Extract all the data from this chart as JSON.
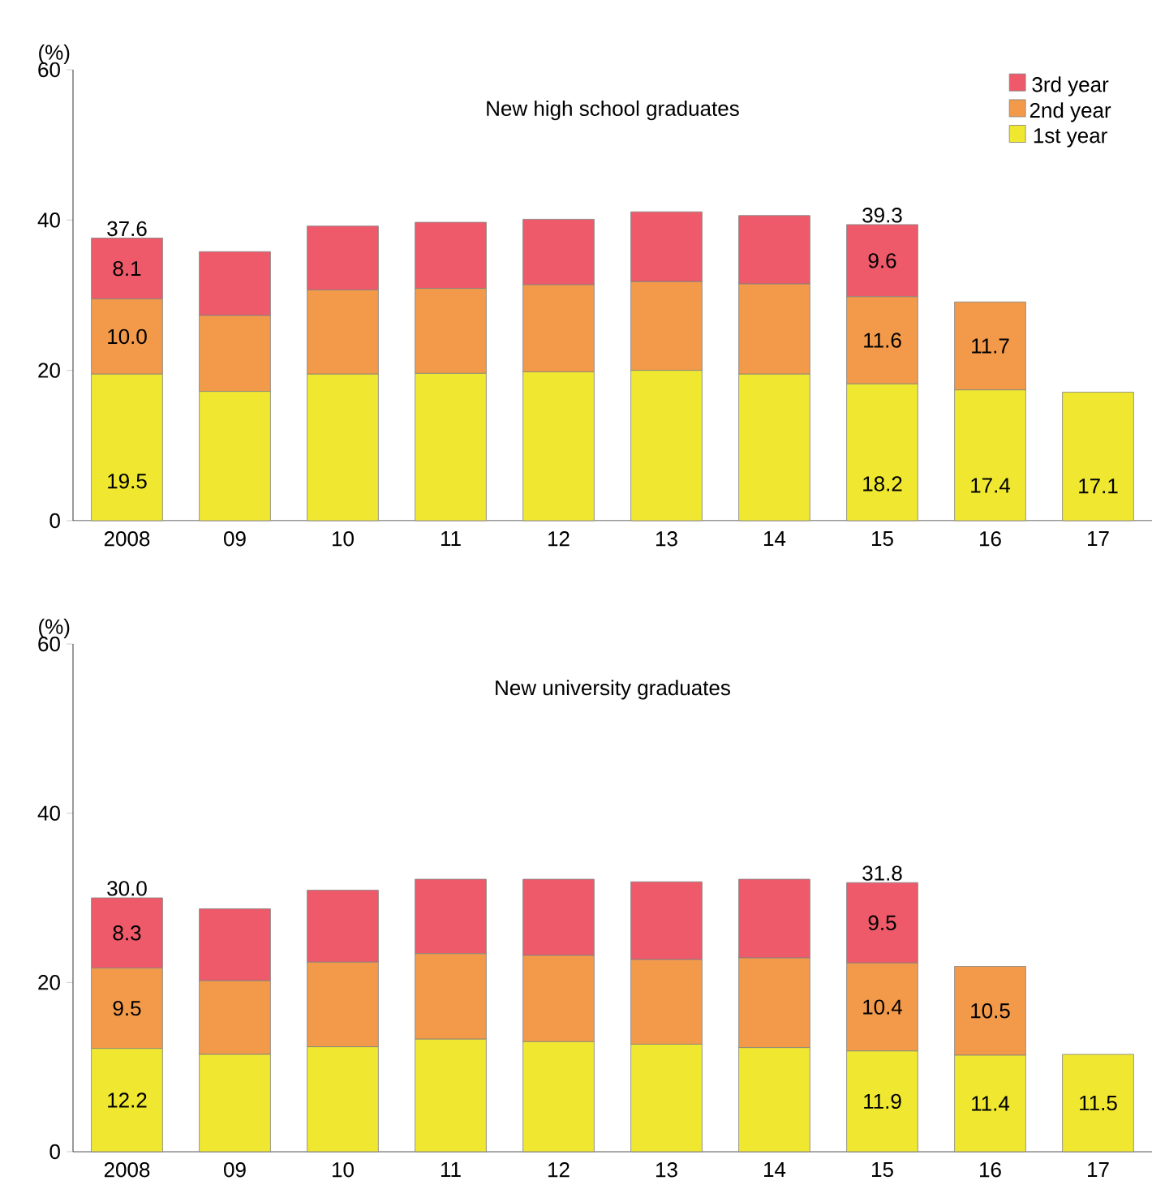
{
  "chart_data": [
    {
      "type": "bar",
      "stacked": true,
      "title": "New high school graduates",
      "ylabel": "(%)",
      "categories": [
        "2008",
        "09",
        "10",
        "11",
        "12",
        "13",
        "14",
        "15",
        "16",
        "17"
      ],
      "ylim": [
        0,
        60
      ],
      "yticks": [
        0,
        20,
        40,
        60
      ],
      "legend": "top right",
      "series": [
        {
          "name": "1st year",
          "color": "#f0e830",
          "values": [
            19.5,
            17.2,
            19.5,
            19.6,
            19.8,
            20.0,
            19.5,
            18.2,
            17.4,
            17.1
          ],
          "value_labels": [
            "19.5",
            null,
            null,
            null,
            null,
            null,
            null,
            "18.2",
            "17.4",
            "17.1"
          ]
        },
        {
          "name": "2nd year",
          "color": "#f39a4a",
          "values": [
            10.0,
            10.1,
            11.2,
            11.3,
            11.6,
            11.8,
            12.0,
            11.6,
            11.7,
            null
          ],
          "value_labels": [
            "10.0",
            null,
            null,
            null,
            null,
            null,
            null,
            "11.6",
            "11.7",
            null
          ]
        },
        {
          "name": "3rd year",
          "color": "#ee5a6a",
          "values": [
            8.1,
            8.5,
            8.5,
            8.8,
            8.7,
            9.3,
            9.1,
            9.6,
            null,
            null
          ],
          "value_labels": [
            "8.1",
            null,
            null,
            null,
            null,
            null,
            null,
            "9.6",
            null,
            null
          ]
        }
      ],
      "totals": [
        "37.6",
        null,
        null,
        null,
        null,
        null,
        null,
        "39.3",
        null,
        null
      ]
    },
    {
      "type": "bar",
      "stacked": true,
      "title": "New university graduates",
      "ylabel": "(%)",
      "categories": [
        "2008",
        "09",
        "10",
        "11",
        "12",
        "13",
        "14",
        "15",
        "16",
        "17"
      ],
      "ylim": [
        0,
        60
      ],
      "yticks": [
        0,
        20,
        40,
        60
      ],
      "series": [
        {
          "color": "#f0e830",
          "values": [
            12.2,
            11.5,
            12.4,
            13.3,
            13.0,
            12.7,
            12.3,
            11.9,
            11.4,
            11.5
          ],
          "value_labels": [
            "12.2",
            null,
            null,
            null,
            null,
            null,
            null,
            "11.9",
            "11.4",
            "11.5"
          ]
        },
        {
          "color": "#f39a4a",
          "values": [
            9.5,
            8.7,
            10.0,
            10.1,
            10.2,
            10.0,
            10.6,
            10.4,
            10.5,
            null
          ],
          "value_labels": [
            "9.5",
            null,
            null,
            null,
            null,
            null,
            null,
            "10.4",
            "10.5",
            null
          ]
        },
        {
          "color": "#ee5a6a",
          "values": [
            8.3,
            8.5,
            8.5,
            8.8,
            9.0,
            9.2,
            9.3,
            9.5,
            null,
            null
          ],
          "value_labels": [
            "8.3",
            null,
            null,
            null,
            null,
            null,
            null,
            "9.5",
            null,
            null
          ]
        }
      ],
      "totals": [
        "30.0",
        null,
        null,
        null,
        null,
        null,
        null,
        "31.8",
        null,
        null
      ]
    }
  ]
}
